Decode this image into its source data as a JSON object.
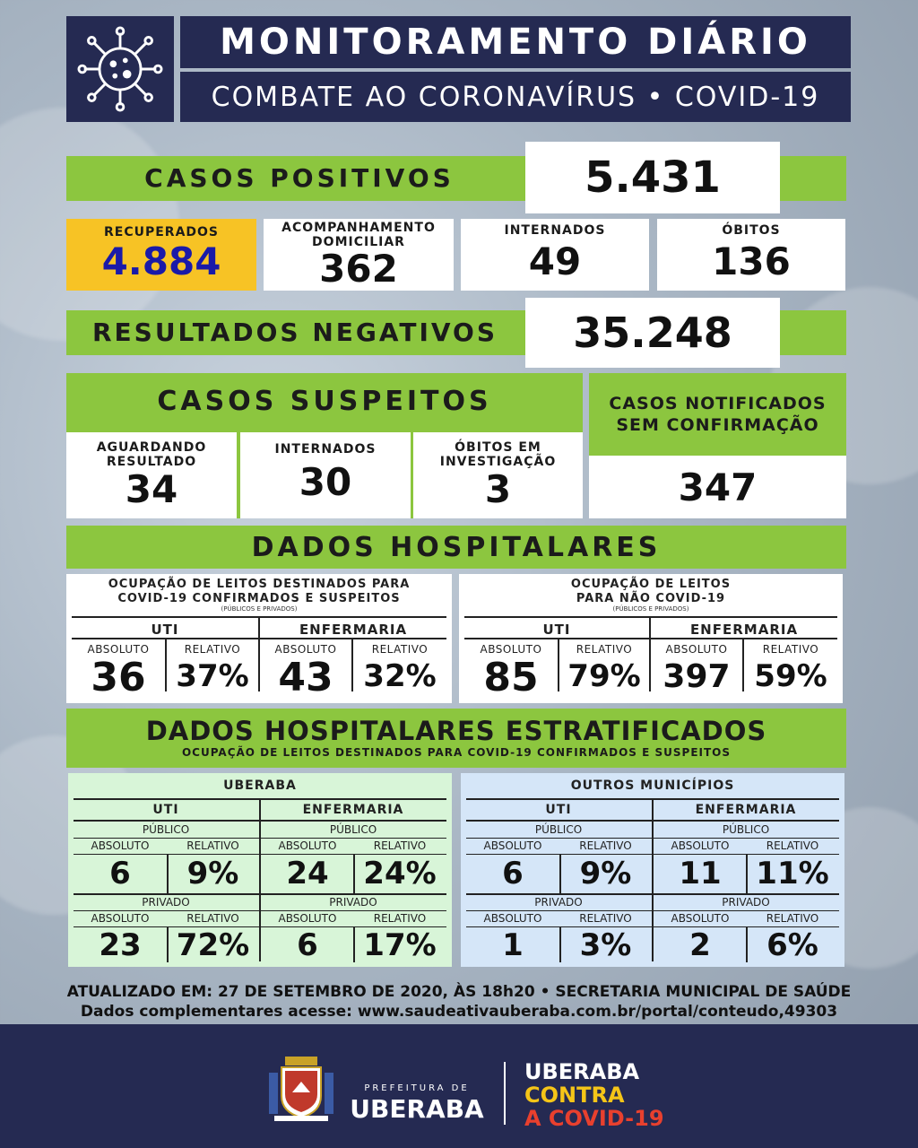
{
  "header": {
    "title": "MONITORAMENTO DIÁRIO",
    "subtitle": "COMBATE AO CORONAVÍRUS • COVID-19",
    "icon": "virus-icon"
  },
  "positivos": {
    "label": "CASOS POSITIVOS",
    "value": "5.431"
  },
  "status": [
    {
      "label": "RECUPERADOS",
      "value": "4.884"
    },
    {
      "label": "ACOMPANHAMENTO DOMICILIAR",
      "value": "362"
    },
    {
      "label": "INTERNADOS",
      "value": "49"
    },
    {
      "label": "ÓBITOS",
      "value": "136"
    }
  ],
  "negativos": {
    "label": "RESULTADOS NEGATIVOS",
    "value": "35.248"
  },
  "suspeitos": {
    "label": "CASOS SUSPEITOS",
    "items": [
      {
        "label": "AGUARDANDO RESULTADO",
        "value": "34"
      },
      {
        "label": "INTERNADOS",
        "value": "30"
      },
      {
        "label": "ÓBITOS EM INVESTIGAÇÃO",
        "value": "3"
      }
    ]
  },
  "notificados": {
    "label": "CASOS NOTIFICADOS SEM CONFIRMAÇÃO",
    "value": "347"
  },
  "hospitalares": {
    "title": "DADOS HOSPITALARES",
    "covid": {
      "title_1": "OCUPAÇÃO DE LEITOS DESTINADOS PARA",
      "title_2a": "COVID-19 ",
      "title_2b": "CONFIRMADOS E SUSPEITOS",
      "note": "(PÚBLICOS E PRIVADOS)",
      "uti_label": "UTI",
      "enf_label": "ENFERMARIA",
      "abs_label": "ABSOLUTO",
      "rel_label": "RELATIVO",
      "uti_abs": "36",
      "uti_rel": "37%",
      "enf_abs": "43",
      "enf_rel": "32%"
    },
    "nao_covid": {
      "title_1": "OCUPAÇÃO DE LEITOS",
      "title_2a": "PARA ",
      "title_2b": "NÃO COVID-19",
      "note": "(PÚBLICOS E PRIVADOS)",
      "uti_label": "UTI",
      "enf_label": "ENFERMARIA",
      "abs_label": "ABSOLUTO",
      "rel_label": "RELATIVO",
      "uti_abs": "85",
      "uti_rel": "79%",
      "enf_abs": "397",
      "enf_rel": "59%"
    }
  },
  "estratificados": {
    "title": "DADOS HOSPITALARES ESTRATIFICADOS",
    "subtitle": "OCUPAÇÃO DE LEITOS DESTINADOS PARA COVID-19 CONFIRMADOS E SUSPEITOS",
    "uberaba": {
      "title": "UBERABA",
      "uti": "UTI",
      "enf": "ENFERMARIA",
      "pub": "PÚBLICO",
      "priv": "PRIVADO",
      "abs": "ABSOLUTO",
      "rel": "RELATIVO",
      "pub_vals": [
        "6",
        "9%",
        "24",
        "24%"
      ],
      "priv_vals": [
        "23",
        "72%",
        "6",
        "17%"
      ],
      "bg": "#d8f5d8"
    },
    "outros": {
      "title": "OUTROS MUNICÍPIOS",
      "uti": "UTI",
      "enf": "ENFERMARIA",
      "pub": "PÚBLICO",
      "priv": "PRIVADO",
      "abs": "ABSOLUTO",
      "rel": "RELATIVO",
      "pub_vals": [
        "6",
        "9%",
        "11",
        "11%"
      ],
      "priv_vals": [
        "1",
        "3%",
        "2",
        "6%"
      ],
      "bg": "#d5e6f8"
    }
  },
  "atualizado": "ATUALIZADO EM: 27 DE SETEMBRO DE 2020, ÀS 18h20 • SECRETARIA MUNICIPAL DE SAÚDE",
  "complementares": "Dados complementares acesse: www.saudeativauberaba.com.br/portal/conteudo,49303",
  "footer": {
    "prefeitura_small": "PREFEITURA DE",
    "prefeitura_big": "UBERABA",
    "slogan_1": "UBERABA",
    "slogan_2": "CONTRA",
    "slogan_3": "A COVID-19",
    "slogan_2_color": "#f5c518",
    "slogan_3_color": "#e8402e"
  },
  "colors": {
    "navy": "#252a52",
    "green": "#8cc63f",
    "yellow": "#f7c325",
    "blue_num": "#1a1aa8"
  }
}
